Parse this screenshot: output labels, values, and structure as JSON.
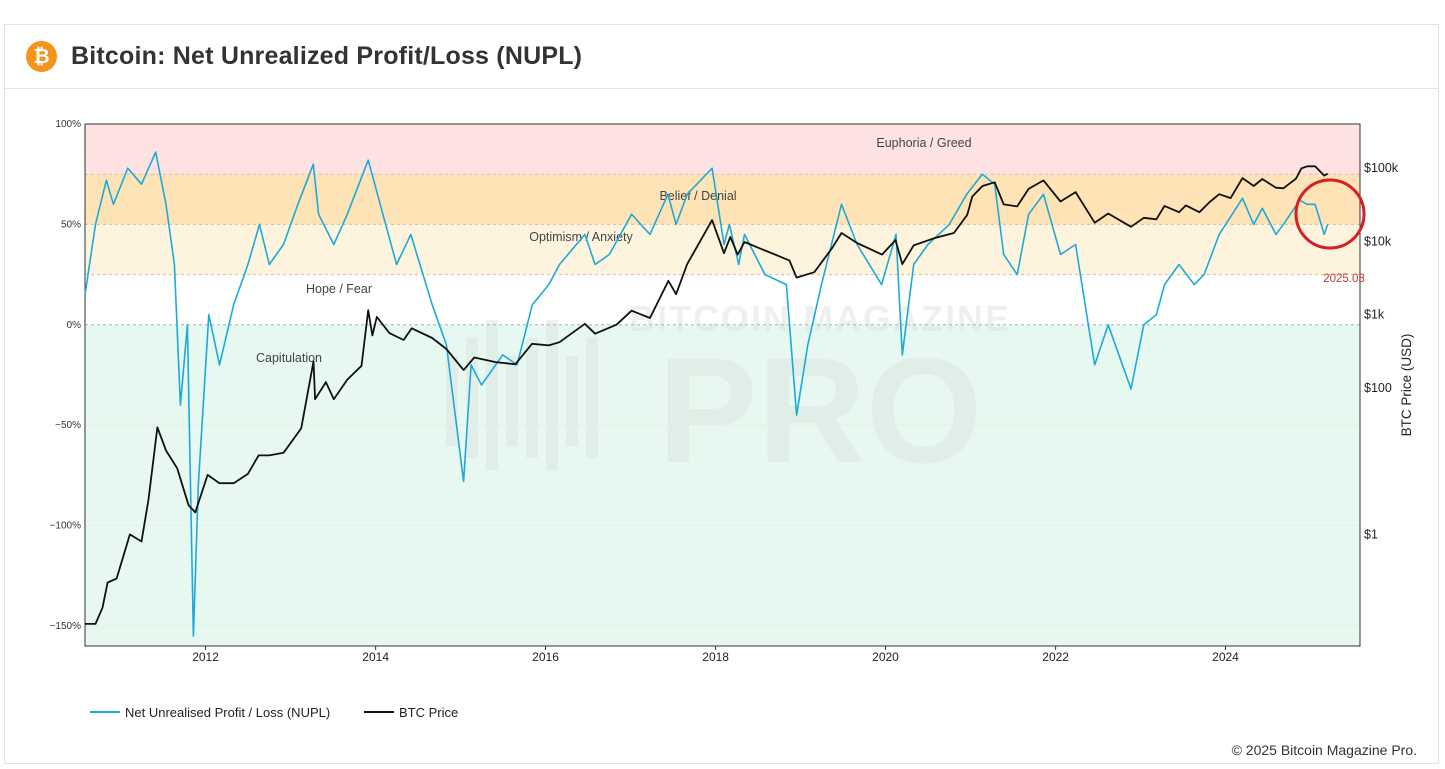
{
  "page": {
    "title": "Bitcoin: Net Unrealized Profit/Loss (NUPL)",
    "logo_glyph": "₿",
    "footer": "© 2025 Bitcoin Magazine Pro.",
    "watermark_top": "BITCOIN MAGAZINE",
    "watermark_bottom": "PRO"
  },
  "colors": {
    "nupl": "#1eaad9",
    "price": "#111111",
    "euphoria_zone": "#fde2e1",
    "belief_zone": "#fde3b5",
    "optimism_zone": "#fef4dd",
    "capitulation_zone": "#e6f8ef",
    "circle": "#d42026",
    "marker_label": "#c0392b"
  },
  "chart_data": {
    "type": "line",
    "x_axis": {
      "type": "date",
      "range": [
        "2010-08-01",
        "2025-08-01"
      ],
      "ticks": [
        "2012",
        "2014",
        "2016",
        "2018",
        "2020",
        "2022",
        "2024"
      ]
    },
    "y_left": {
      "label": "",
      "range": [
        -1.6,
        1.0
      ],
      "ticks": [
        "100%",
        "50%",
        "0%",
        "−50%",
        "−100%",
        "−150%"
      ]
    },
    "y_right": {
      "label": "BTC Price (USD)",
      "scale": "log",
      "range": [
        0.03,
        400000
      ],
      "ticks": [
        "$100k",
        "$10k",
        "$1k",
        "$100",
        "$1"
      ]
    },
    "zones": [
      {
        "label": "Euphoria / Greed",
        "from": 0.75,
        "to": 1.0
      },
      {
        "label": "Belief / Denial",
        "from": 0.5,
        "to": 0.75
      },
      {
        "label": "Optimism / Anxiety",
        "from": 0.25,
        "to": 0.5
      },
      {
        "label": "Hope / Fear",
        "from": 0.0,
        "to": 0.25
      },
      {
        "label": "Capitulation",
        "from": -1.6,
        "to": 0.0
      }
    ],
    "annotation": {
      "label": "2025.03",
      "x": "2025-03-01",
      "y": 0.49
    },
    "legend": {
      "position": "bottom-left"
    },
    "series": [
      {
        "name": "Net Unrealised Profit / Loss (NUPL)",
        "axis": "left",
        "points": [
          [
            "2010-08-01",
            0.15
          ],
          [
            "2010-09-15",
            0.5
          ],
          [
            "2010-11-01",
            0.72
          ],
          [
            "2010-12-01",
            0.6
          ],
          [
            "2011-02-01",
            0.78
          ],
          [
            "2011-04-01",
            0.7
          ],
          [
            "2011-06-01",
            0.86
          ],
          [
            "2011-07-15",
            0.6
          ],
          [
            "2011-08-20",
            0.3
          ],
          [
            "2011-09-15",
            -0.4
          ],
          [
            "2011-10-15",
            0.0
          ],
          [
            "2011-11-10",
            -1.55
          ],
          [
            "2011-12-01",
            -0.8
          ],
          [
            "2012-01-15",
            0.05
          ],
          [
            "2012-03-01",
            -0.2
          ],
          [
            "2012-05-01",
            0.1
          ],
          [
            "2012-07-01",
            0.3
          ],
          [
            "2012-08-20",
            0.5
          ],
          [
            "2012-10-01",
            0.3
          ],
          [
            "2012-12-01",
            0.4
          ],
          [
            "2013-02-01",
            0.6
          ],
          [
            "2013-04-08",
            0.8
          ],
          [
            "2013-05-01",
            0.55
          ],
          [
            "2013-07-05",
            0.4
          ],
          [
            "2013-09-01",
            0.55
          ],
          [
            "2013-11-30",
            0.82
          ],
          [
            "2014-02-01",
            0.55
          ],
          [
            "2014-04-01",
            0.3
          ],
          [
            "2014-06-01",
            0.45
          ],
          [
            "2014-09-01",
            0.1
          ],
          [
            "2014-11-01",
            -0.1
          ],
          [
            "2015-01-14",
            -0.78
          ],
          [
            "2015-02-15",
            -0.2
          ],
          [
            "2015-04-01",
            -0.3
          ],
          [
            "2015-07-01",
            -0.15
          ],
          [
            "2015-09-01",
            -0.2
          ],
          [
            "2015-11-05",
            0.1
          ],
          [
            "2016-01-15",
            0.2
          ],
          [
            "2016-03-01",
            0.3
          ],
          [
            "2016-06-18",
            0.45
          ],
          [
            "2016-08-01",
            0.3
          ],
          [
            "2016-10-01",
            0.35
          ],
          [
            "2017-01-05",
            0.55
          ],
          [
            "2017-03-25",
            0.45
          ],
          [
            "2017-06-10",
            0.65
          ],
          [
            "2017-07-15",
            0.5
          ],
          [
            "2017-09-01",
            0.65
          ],
          [
            "2017-12-17",
            0.78
          ],
          [
            "2018-02-06",
            0.4
          ],
          [
            "2018-03-01",
            0.5
          ],
          [
            "2018-04-10",
            0.3
          ],
          [
            "2018-05-05",
            0.45
          ],
          [
            "2018-08-01",
            0.25
          ],
          [
            "2018-11-01",
            0.2
          ],
          [
            "2018-12-15",
            -0.45
          ],
          [
            "2019-02-01",
            -0.1
          ],
          [
            "2019-04-01",
            0.2
          ],
          [
            "2019-06-26",
            0.6
          ],
          [
            "2019-09-01",
            0.4
          ],
          [
            "2019-12-15",
            0.2
          ],
          [
            "2020-02-15",
            0.45
          ],
          [
            "2020-03-13",
            -0.15
          ],
          [
            "2020-05-01",
            0.3
          ],
          [
            "2020-07-01",
            0.4
          ],
          [
            "2020-10-01",
            0.5
          ],
          [
            "2020-12-15",
            0.65
          ],
          [
            "2021-02-20",
            0.75
          ],
          [
            "2021-04-14",
            0.7
          ],
          [
            "2021-05-23",
            0.35
          ],
          [
            "2021-07-20",
            0.25
          ],
          [
            "2021-09-07",
            0.55
          ],
          [
            "2021-11-10",
            0.65
          ],
          [
            "2022-01-22",
            0.35
          ],
          [
            "2022-03-28",
            0.4
          ],
          [
            "2022-06-18",
            -0.2
          ],
          [
            "2022-08-15",
            0.0
          ],
          [
            "2022-11-21",
            -0.32
          ],
          [
            "2023-01-15",
            0.0
          ],
          [
            "2023-03-10",
            0.05
          ],
          [
            "2023-04-14",
            0.2
          ],
          [
            "2023-06-15",
            0.3
          ],
          [
            "2023-08-20",
            0.2
          ],
          [
            "2023-10-01",
            0.25
          ],
          [
            "2023-12-05",
            0.45
          ],
          [
            "2024-03-14",
            0.63
          ],
          [
            "2024-05-01",
            0.5
          ],
          [
            "2024-06-07",
            0.58
          ],
          [
            "2024-08-05",
            0.45
          ],
          [
            "2024-09-06",
            0.5
          ],
          [
            "2024-11-15",
            0.62
          ],
          [
            "2024-12-17",
            0.6
          ],
          [
            "2025-01-20",
            0.6
          ],
          [
            "2025-02-28",
            0.45
          ],
          [
            "2025-03-15",
            0.5
          ]
        ]
      },
      {
        "name": "BTC Price",
        "axis": "right",
        "points": [
          [
            "2010-08-01",
            0.06
          ],
          [
            "2010-09-15",
            0.06
          ],
          [
            "2010-10-15",
            0.1
          ],
          [
            "2010-11-06",
            0.22
          ],
          [
            "2010-12-15",
            0.25
          ],
          [
            "2011-02-10",
            1.0
          ],
          [
            "2011-04-01",
            0.8
          ],
          [
            "2011-05-01",
            3.0
          ],
          [
            "2011-06-08",
            29
          ],
          [
            "2011-07-15",
            14
          ],
          [
            "2011-09-01",
            8
          ],
          [
            "2011-10-20",
            2.5
          ],
          [
            "2011-11-18",
            2.0
          ],
          [
            "2012-01-10",
            6.5
          ],
          [
            "2012-03-01",
            5.0
          ],
          [
            "2012-05-01",
            5.0
          ],
          [
            "2012-07-01",
            6.7
          ],
          [
            "2012-08-16",
            12
          ],
          [
            "2012-10-01",
            12
          ],
          [
            "2012-12-01",
            13
          ],
          [
            "2013-02-15",
            28
          ],
          [
            "2013-04-09",
            230
          ],
          [
            "2013-04-16",
            70
          ],
          [
            "2013-06-01",
            120
          ],
          [
            "2013-07-05",
            70
          ],
          [
            "2013-09-01",
            130
          ],
          [
            "2013-11-01",
            200
          ],
          [
            "2013-11-30",
            1150
          ],
          [
            "2013-12-18",
            520
          ],
          [
            "2014-01-06",
            930
          ],
          [
            "2014-03-01",
            560
          ],
          [
            "2014-05-01",
            450
          ],
          [
            "2014-06-05",
            650
          ],
          [
            "2014-09-01",
            480
          ],
          [
            "2014-11-01",
            340
          ],
          [
            "2015-01-14",
            175
          ],
          [
            "2015-03-01",
            260
          ],
          [
            "2015-06-01",
            225
          ],
          [
            "2015-08-24",
            210
          ],
          [
            "2015-11-04",
            400
          ],
          [
            "2016-01-15",
            380
          ],
          [
            "2016-03-01",
            420
          ],
          [
            "2016-06-18",
            750
          ],
          [
            "2016-08-01",
            550
          ],
          [
            "2016-11-01",
            730
          ],
          [
            "2017-01-05",
            1130
          ],
          [
            "2017-03-25",
            900
          ],
          [
            "2017-06-12",
            2900
          ],
          [
            "2017-07-15",
            1900
          ],
          [
            "2017-09-01",
            4900
          ],
          [
            "2017-12-17",
            19500
          ],
          [
            "2018-02-06",
            6900
          ],
          [
            "2018-03-05",
            11500
          ],
          [
            "2018-04-06",
            6600
          ],
          [
            "2018-05-05",
            9800
          ],
          [
            "2018-08-01",
            7500
          ],
          [
            "2018-11-14",
            5500
          ],
          [
            "2018-12-15",
            3200
          ],
          [
            "2019-03-01",
            3800
          ],
          [
            "2019-05-15",
            8000
          ],
          [
            "2019-06-26",
            13000
          ],
          [
            "2019-09-01",
            9500
          ],
          [
            "2019-12-17",
            6600
          ],
          [
            "2020-02-13",
            10400
          ],
          [
            "2020-03-13",
            4900
          ],
          [
            "2020-05-01",
            8800
          ],
          [
            "2020-07-27",
            11000
          ],
          [
            "2020-10-21",
            13000
          ],
          [
            "2020-12-17",
            23000
          ],
          [
            "2021-01-08",
            41000
          ],
          [
            "2021-02-21",
            57000
          ],
          [
            "2021-04-14",
            64000
          ],
          [
            "2021-05-23",
            32000
          ],
          [
            "2021-07-20",
            30000
          ],
          [
            "2021-09-07",
            52000
          ],
          [
            "2021-11-10",
            68000
          ],
          [
            "2022-01-22",
            35000
          ],
          [
            "2022-03-28",
            47000
          ],
          [
            "2022-06-18",
            18000
          ],
          [
            "2022-08-15",
            24000
          ],
          [
            "2022-11-21",
            15800
          ],
          [
            "2023-01-15",
            21000
          ],
          [
            "2023-03-10",
            20000
          ],
          [
            "2023-04-14",
            30500
          ],
          [
            "2023-06-15",
            25000
          ],
          [
            "2023-07-15",
            31000
          ],
          [
            "2023-09-11",
            25000
          ],
          [
            "2023-10-25",
            34500
          ],
          [
            "2023-12-05",
            44000
          ],
          [
            "2024-01-23",
            39000
          ],
          [
            "2024-03-14",
            73000
          ],
          [
            "2024-05-01",
            57000
          ],
          [
            "2024-06-07",
            71000
          ],
          [
            "2024-08-05",
            54000
          ],
          [
            "2024-09-06",
            53000
          ],
          [
            "2024-10-30",
            72000
          ],
          [
            "2024-11-22",
            99000
          ],
          [
            "2024-12-17",
            106000
          ],
          [
            "2025-01-20",
            106000
          ],
          [
            "2025-02-28",
            79000
          ],
          [
            "2025-03-15",
            84000
          ]
        ]
      }
    ]
  }
}
